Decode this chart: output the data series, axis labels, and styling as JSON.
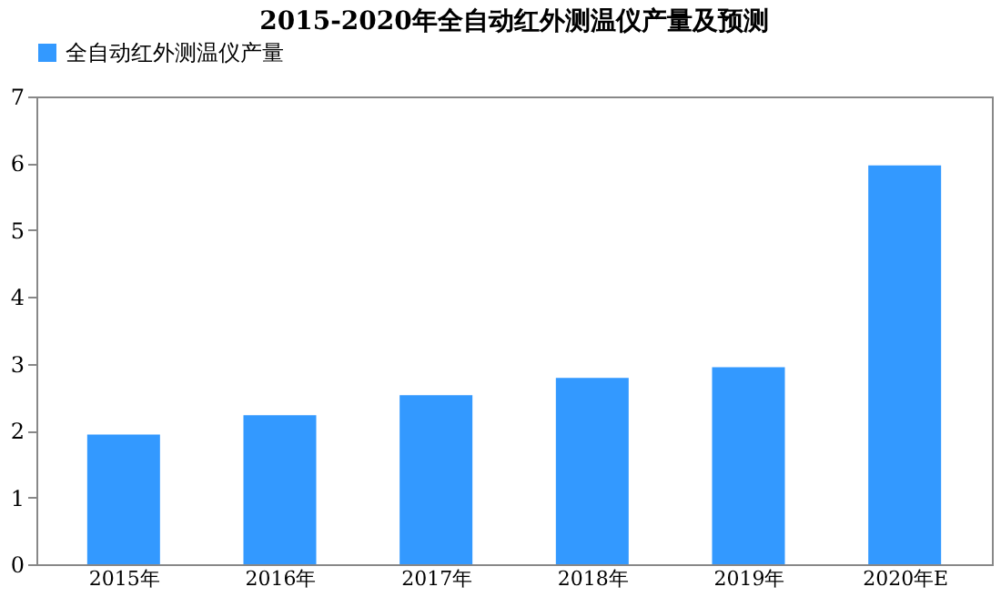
{
  "chart_data": {
    "type": "bar",
    "title": "2015-2020年全自动红外测温仪产量及预测",
    "categories": [
      "2015年",
      "2016年",
      "2017年",
      "2018年",
      "2019年",
      "2020年E"
    ],
    "series": [
      {
        "name": "全自动红外测温仪产量",
        "color": "#3399ff",
        "values": [
          1.94,
          2.23,
          2.53,
          2.79,
          2.95,
          5.97
        ]
      }
    ],
    "ylim": [
      0,
      7
    ],
    "yticks": [
      0,
      1,
      2,
      3,
      4,
      5,
      6,
      7
    ],
    "grid": false,
    "legend": "top"
  }
}
